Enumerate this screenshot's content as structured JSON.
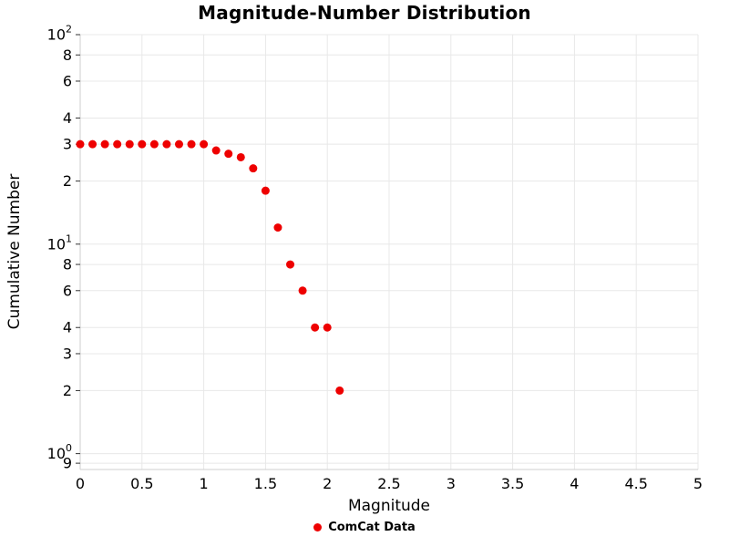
{
  "title": "Magnitude-Number Distribution",
  "axes": {
    "xlabel": "Magnitude",
    "ylabel": "Cumulative Number"
  },
  "colors": {
    "point": "#ee0000",
    "grid": "#e8e8e8",
    "axis_line": "#cfcfcf",
    "tick": "#333333",
    "text": "#000000"
  },
  "chart_data": {
    "type": "scatter",
    "title": "Magnitude-Number Distribution",
    "xlabel": "Magnitude",
    "ylabel": "Cumulative Number",
    "x_scale": "linear",
    "y_scale": "log",
    "xlim": [
      0,
      5
    ],
    "ylim": [
      0.84,
      100
    ],
    "grid": true,
    "legend_position": "bottom-center",
    "x_ticks": [
      {
        "v": 0,
        "label": "0"
      },
      {
        "v": 0.5,
        "label": "0.5"
      },
      {
        "v": 1,
        "label": "1"
      },
      {
        "v": 1.5,
        "label": "1.5"
      },
      {
        "v": 2,
        "label": "2"
      },
      {
        "v": 2.5,
        "label": "2.5"
      },
      {
        "v": 3,
        "label": "3"
      },
      {
        "v": 3.5,
        "label": "3.5"
      },
      {
        "v": 4,
        "label": "4"
      },
      {
        "v": 4.5,
        "label": "4.5"
      },
      {
        "v": 5,
        "label": "5"
      }
    ],
    "y_ticks": [
      {
        "v": 100,
        "base": "10",
        "exp": "2"
      },
      {
        "v": 80,
        "label": "8"
      },
      {
        "v": 60,
        "label": "6"
      },
      {
        "v": 40,
        "label": "4"
      },
      {
        "v": 30,
        "label": "3"
      },
      {
        "v": 20,
        "label": "2"
      },
      {
        "v": 10,
        "base": "10",
        "exp": "1"
      },
      {
        "v": 8,
        "label": "8"
      },
      {
        "v": 6,
        "label": "6"
      },
      {
        "v": 4,
        "label": "4"
      },
      {
        "v": 3,
        "label": "3"
      },
      {
        "v": 2,
        "label": "2"
      },
      {
        "v": 1,
        "base": "10",
        "exp": "0"
      },
      {
        "v": 0.9,
        "label": "9"
      }
    ],
    "series": [
      {
        "name": "ComCat Data",
        "color": "#ee0000",
        "marker": "circle",
        "marker_radius": 4.5,
        "x": [
          0,
          0.1,
          0.2,
          0.3,
          0.4,
          0.5,
          0.6,
          0.7,
          0.8,
          0.9,
          1.0,
          1.1,
          1.2,
          1.3,
          1.4,
          1.5,
          1.6,
          1.7,
          1.8,
          1.9,
          2.0,
          2.1
        ],
        "y": [
          30,
          30,
          30,
          30,
          30,
          30,
          30,
          30,
          30,
          30,
          30,
          28,
          27,
          26,
          23,
          18,
          12,
          8,
          6,
          4,
          4,
          2
        ]
      }
    ]
  }
}
